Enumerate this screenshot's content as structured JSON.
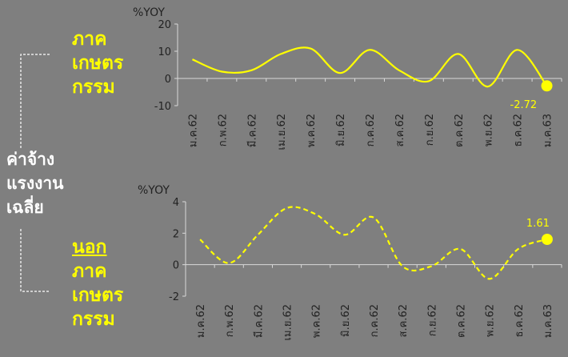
{
  "labels": {
    "top": [
      "ภาค",
      "เกษตร",
      "กรรม"
    ],
    "middle": [
      "ค่าจ้าง",
      "แรงงาน",
      "เฉลี่ย"
    ],
    "bottom": [
      "นอก",
      "ภาค",
      "เกษตร",
      "กรรม"
    ]
  },
  "colors": {
    "line": "#ffff00",
    "axis": "#d9d9d9",
    "background": "#7f7f7f"
  },
  "chart_data": [
    {
      "type": "line",
      "unit_label": "%YOY",
      "line_style": "solid",
      "categories": [
        "ม.ค.62",
        "ก.พ.62",
        "มี.ค.62",
        "เม.ย.62",
        "พ.ค.62",
        "มิ.ย.62",
        "ก.ค.62",
        "ส.ค.62",
        "ก.ย.62",
        "ต.ค.62",
        "พ.ย.62",
        "ธ.ค.62",
        "ม.ค.63"
      ],
      "x_tick_labels": [
        "ม.ค.62",
        "ก.พ.62",
        "มี.ค.62",
        "เม.ย.62",
        "พ.ค.62",
        "มิ.ย.62",
        "ก.ค.62",
        "ส.ค.62",
        "ก.ย.62",
        "ต.ค.62",
        "พ.ย.62",
        "ธ.ค.62",
        "ม.ค.63"
      ],
      "values": [
        7,
        2.5,
        3,
        9,
        11,
        2,
        10.5,
        3,
        -1,
        9,
        -3,
        10.5,
        -2.72
      ],
      "ylim": [
        -10,
        20
      ],
      "y_ticks": [
        -10,
        0,
        10,
        20
      ],
      "data_labels": [
        {
          "index": 12,
          "text": "-2.72"
        }
      ],
      "last_point_marker": true,
      "grid": false
    },
    {
      "type": "line",
      "unit_label": "%YOY",
      "line_style": "dashed",
      "categories": [
        "ม.ค.62",
        "ก.พ.62",
        "มี.ค.62",
        "เม.ย.62",
        "พ.ค.62",
        "มิ.ย.62",
        "ก.ค.62",
        "ส.ค.62",
        "ก.ย.62",
        "ต.ค.62",
        "พ.ย.62",
        "ธ.ค.62",
        "ม.ค.63"
      ],
      "x_tick_labels": [
        "ม.ค.62",
        "ก.พ.62",
        "มี.ค.62",
        "เม.ย.62",
        "พ.ค.62",
        "มิ.ย.62",
        "ก.ค.62",
        "ส.ค.62",
        "ก.ย.62",
        "ต.ค.62",
        "พ.ย.62",
        "ธ.ค.62",
        "ม.ค.63"
      ],
      "values": [
        1.6,
        0.1,
        1.9,
        3.6,
        3.2,
        1.9,
        3.0,
        -0.1,
        -0.1,
        1.0,
        -0.9,
        1.0,
        1.61
      ],
      "ylim": [
        -2,
        4
      ],
      "y_ticks": [
        -2,
        0,
        2,
        4
      ],
      "data_labels": [
        {
          "index": 12,
          "text": "1.61"
        }
      ],
      "last_point_marker": true,
      "grid": false
    }
  ]
}
